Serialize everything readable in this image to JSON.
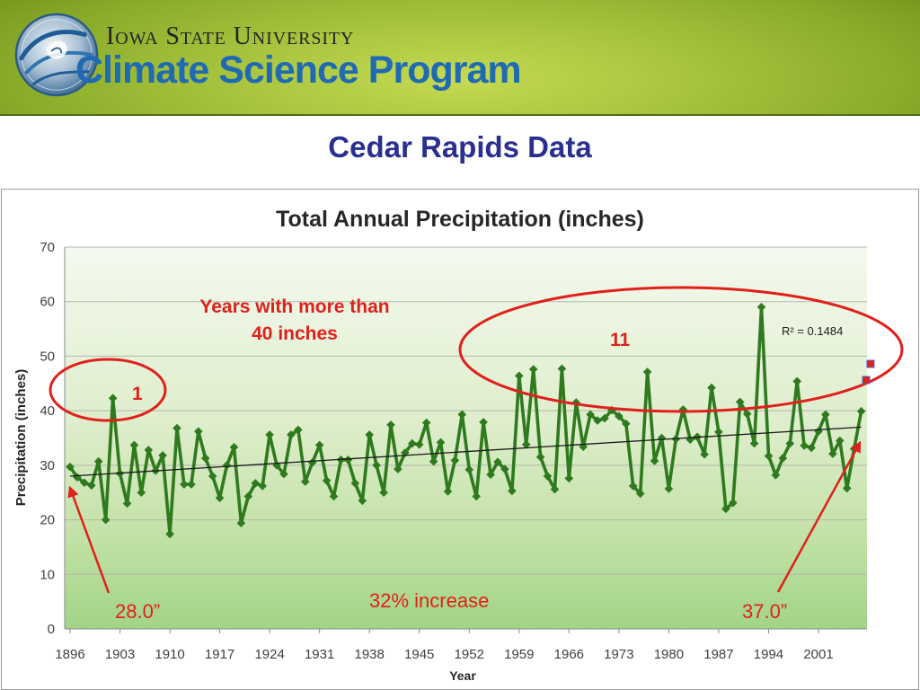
{
  "header": {
    "logo_icon": "climate-science-emblem",
    "university": "Iowa State University",
    "program": "Climate Science Program"
  },
  "slide_title": "Cedar Rapids Data",
  "colors": {
    "header_green": "#a9c540",
    "program_blue": "#1f6ab3",
    "slide_title": "#2a2f8f",
    "series": "#2f7a1f",
    "trendline": "#1a1a1a",
    "annotation_red": "#e0201b"
  },
  "chart_data": {
    "type": "line",
    "title": "Total Annual Precipitation (inches)",
    "xlabel": "Year",
    "ylabel": "Precipitation (inches)",
    "ylim": [
      0,
      70
    ],
    "xlim": [
      1896,
      2007
    ],
    "yticks": [
      0,
      10,
      20,
      30,
      40,
      50,
      60,
      70
    ],
    "xticks": [
      1896,
      1903,
      1910,
      1917,
      1924,
      1931,
      1938,
      1945,
      1952,
      1959,
      1966,
      1973,
      1980,
      1987,
      1994,
      2001
    ],
    "grid": "horizontal",
    "series": [
      {
        "x": [
          1896,
          1897,
          1898,
          1899,
          1900,
          1901,
          1902,
          1903,
          1904,
          1905,
          1906,
          1907,
          1908,
          1909,
          1910,
          1911,
          1912,
          1913,
          1914,
          1915,
          1916,
          1917,
          1918,
          1919,
          1920,
          1921,
          1922,
          1923,
          1924,
          1925,
          1926,
          1927,
          1928,
          1929,
          1930,
          1931,
          1932,
          1933,
          1934,
          1935,
          1936,
          1937,
          1938,
          1939,
          1940,
          1941,
          1942,
          1943,
          1944,
          1945,
          1946,
          1947,
          1948,
          1949,
          1950,
          1951,
          1952,
          1953,
          1954,
          1955,
          1956,
          1957,
          1958,
          1959,
          1960,
          1961,
          1962,
          1963,
          1964,
          1965,
          1966,
          1967,
          1968,
          1969,
          1970,
          1971,
          1972,
          1973,
          1974,
          1975,
          1976,
          1977,
          1978,
          1979,
          1980,
          1981,
          1982,
          1983,
          1984,
          1985,
          1986,
          1987,
          1988,
          1989,
          1990,
          1991,
          1992,
          1993,
          1994,
          1995,
          1996,
          1997,
          1998,
          1999,
          2000,
          2001,
          2002,
          2003,
          2004,
          2005,
          2006,
          2007
        ],
        "values": [
          29.7,
          27.8,
          26.8,
          26.3,
          30.7,
          20.0,
          42.3,
          28.5,
          23.0,
          33.7,
          25.0,
          32.8,
          29.0,
          31.8,
          17.4,
          36.8,
          26.5,
          26.5,
          36.2,
          31.3,
          28.0,
          24.0,
          30.0,
          33.3,
          19.4,
          24.3,
          26.7,
          26.2,
          35.6,
          30.0,
          28.4,
          35.6,
          36.5,
          27.0,
          30.5,
          33.7,
          27.2,
          24.3,
          31.0,
          31.0,
          26.7,
          23.5,
          35.6,
          30.0,
          25.0,
          37.4,
          29.3,
          32.3,
          34.0,
          33.8,
          37.8,
          30.7,
          34.2,
          25.2,
          30.9,
          39.3,
          29.2,
          24.3,
          37.9,
          28.3,
          30.6,
          29.3,
          25.3,
          46.4,
          33.8,
          47.6,
          31.5,
          28.0,
          25.6,
          47.7,
          27.6,
          41.5,
          33.4,
          39.3,
          38.2,
          38.6,
          40.1,
          39.0,
          37.6,
          26.2,
          24.8,
          47.1,
          30.8,
          35.0,
          25.7,
          34.8,
          40.2,
          34.7,
          35.2,
          32.0,
          44.2,
          36.1,
          22.0,
          23.1,
          41.6,
          39.4,
          34.0,
          59.0,
          31.7,
          28.2,
          31.3,
          34.0,
          45.4,
          33.6,
          33.2,
          36.2,
          39.3,
          32.1,
          34.5,
          25.8,
          33.0,
          39.9
        ]
      }
    ],
    "trendline": {
      "label": "R² = 0.1484",
      "start": 28.0,
      "end": 37.0
    },
    "annotations": {
      "callout": [
        "Years with more than",
        "40 inches"
      ],
      "count_early": "1",
      "count_late": "11",
      "start_label": "28.0”",
      "end_label": "37.0”",
      "change_label": "32% increase"
    }
  }
}
